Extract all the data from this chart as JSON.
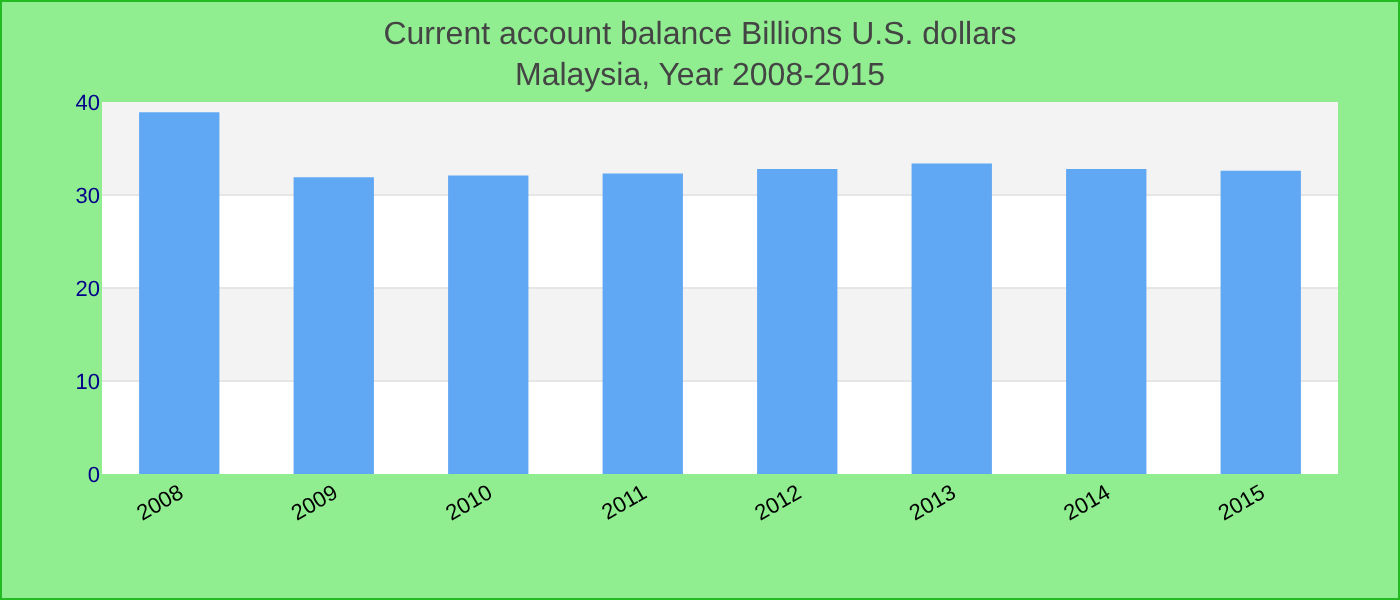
{
  "chart_data": {
    "type": "bar",
    "title": "Current account balance Billions U.S. dollars\nMalaysia, Year 2008-2015",
    "categories": [
      "2008",
      "2009",
      "2010",
      "2011",
      "2012",
      "2013",
      "2014",
      "2015"
    ],
    "values": [
      38.9,
      31.9,
      32.1,
      32.3,
      32.8,
      33.4,
      32.8,
      32.6
    ],
    "color": "#61a8f4",
    "ylim": [
      0,
      40
    ],
    "yticks": [
      0,
      10,
      20,
      30,
      40
    ],
    "grid": true
  }
}
